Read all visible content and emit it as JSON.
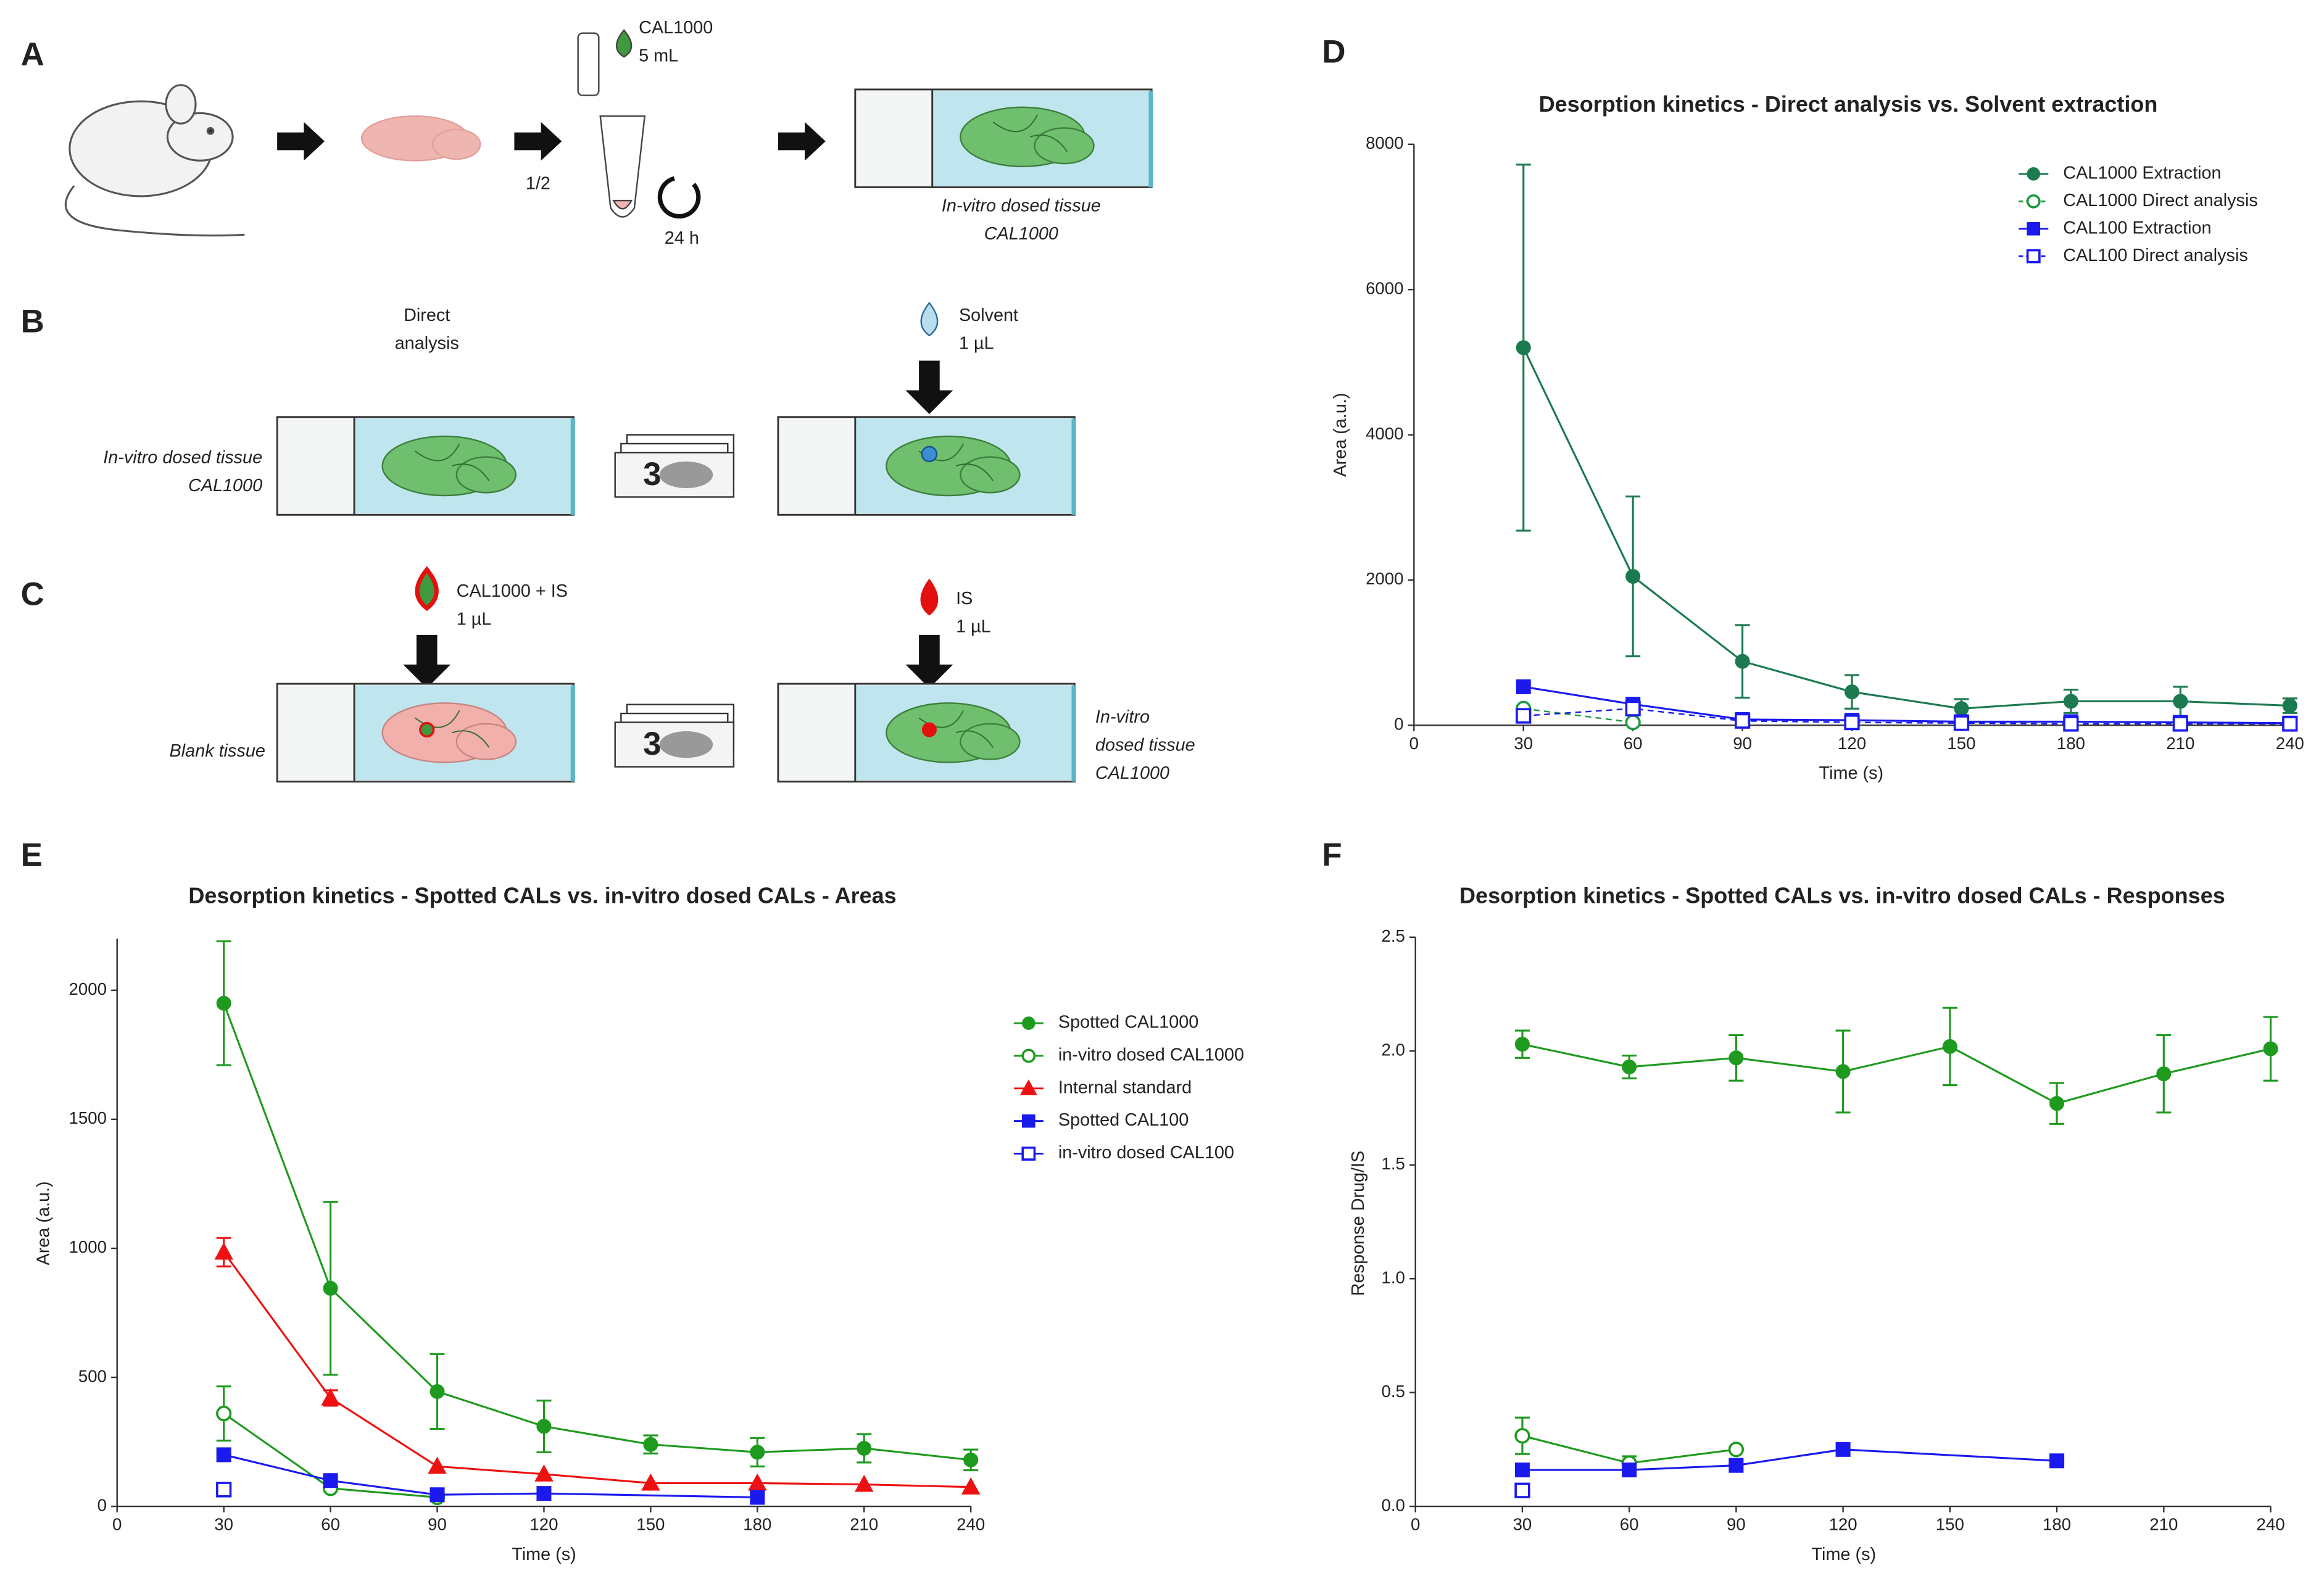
{
  "panel_labels": [
    "A",
    "B",
    "C",
    "D",
    "E",
    "F"
  ],
  "schematic": {
    "a": {
      "drug": "CAL1000",
      "volume": "5 mL",
      "fraction": "1/2",
      "time": "24 h",
      "slide_line1": "In-vitro dosed tissue",
      "slide_line2": "CAL1000"
    },
    "b": {
      "left_line1": "Direct",
      "left_line2": "analysis",
      "right_line1": "Solvent",
      "right_line2": "1 µL",
      "slide_line1": "In-vitro dosed tissue",
      "slide_line2": "CAL1000",
      "replicates": "3"
    },
    "c": {
      "left_line1": "CAL1000 + IS",
      "left_line2": "1 µL",
      "right_line1": "IS",
      "right_line2": "1 µL",
      "slide_left": "Blank tissue",
      "replicates": "3",
      "slide_right_line1": "In-vitro",
      "slide_right_line2": "dosed tissue",
      "slide_right_line3": "CAL1000"
    }
  },
  "chart_data": [
    {
      "type": "line",
      "title": "Desorption kinetics - Direct analysis vs. Solvent extraction",
      "x_label": "Time (s)",
      "y_label": "Area (a.u.)",
      "xlim": [
        0,
        240
      ],
      "xticks": [
        0,
        30,
        60,
        90,
        120,
        150,
        180,
        210,
        240
      ],
      "ylim": [
        0,
        8000
      ],
      "yticks": [
        0,
        2000,
        4000,
        6000,
        8000
      ],
      "legend": "upper right",
      "series": [
        {
          "name": "CAL1000 Extraction",
          "color": "#1b7a4f",
          "marker": "circle",
          "x": [
            30,
            60,
            90,
            120,
            150,
            180,
            210,
            240
          ],
          "values": [
            5200,
            2050,
            880,
            460,
            230,
            330,
            330,
            270
          ],
          "errors": [
            2520,
            1100,
            500,
            230,
            130,
            160,
            200,
            100
          ]
        },
        {
          "name": "CAL1000 Direct analysis",
          "color": "#1b9a3f",
          "marker": "circle-open",
          "line_style": "dashed",
          "x": [
            30,
            60
          ],
          "values": [
            230,
            40
          ]
        },
        {
          "name": "CAL100 Extraction",
          "color": "#1a1aee",
          "marker": "square",
          "x": [
            30,
            60,
            90,
            120,
            150,
            180,
            210,
            240
          ],
          "values": [
            530,
            290,
            80,
            70,
            50,
            50,
            40,
            30
          ]
        },
        {
          "name": "CAL100 Direct analysis",
          "color": "#1a1aee",
          "marker": "square-open",
          "line_style": "dashed",
          "x": [
            30,
            60,
            90,
            120,
            150,
            180,
            210,
            240
          ],
          "values": [
            130,
            230,
            60,
            40,
            30,
            20,
            20,
            20
          ]
        }
      ]
    },
    {
      "type": "line",
      "title": "Desorption kinetics - Spotted CALs vs. in-vitro dosed CALs - Areas",
      "x_label": "Time (s)",
      "y_label": "Area (a.u.)",
      "xlim": [
        0,
        240
      ],
      "xticks": [
        0,
        30,
        60,
        90,
        120,
        150,
        180,
        210,
        240
      ],
      "ylim": [
        0,
        2200
      ],
      "yticks": [
        0,
        500,
        1000,
        1500,
        2000
      ],
      "legend": "upper right",
      "series": [
        {
          "name": "Spotted CAL1000",
          "color": "#1e9a1e",
          "marker": "circle",
          "x": [
            30,
            60,
            90,
            120,
            150,
            180,
            210,
            240
          ],
          "values": [
            1950,
            845,
            445,
            310,
            240,
            210,
            225,
            180
          ],
          "errors": [
            240,
            335,
            145,
            100,
            35,
            55,
            55,
            40
          ]
        },
        {
          "name": "in-vitro dosed CAL1000",
          "color": "#1e9a1e",
          "marker": "circle-open",
          "x": [
            30,
            60,
            90
          ],
          "values": [
            360,
            70,
            35
          ],
          "errors": [
            105,
            null,
            null
          ]
        },
        {
          "name": "Internal standard",
          "color": "#ee1111",
          "marker": "triangle",
          "x": [
            30,
            60,
            90,
            120,
            150,
            180,
            210,
            240
          ],
          "values": [
            985,
            420,
            155,
            125,
            90,
            90,
            85,
            75
          ],
          "errors": [
            55,
            30,
            null,
            null,
            null,
            null,
            null,
            null
          ]
        },
        {
          "name": "Spotted CAL100",
          "color": "#1a1aee",
          "marker": "square",
          "x": [
            30,
            60,
            90,
            120,
            180
          ],
          "values": [
            200,
            100,
            45,
            50,
            35
          ]
        },
        {
          "name": "in-vitro dosed CAL100",
          "color": "#1a1aee",
          "marker": "square-open",
          "x": [
            30
          ],
          "values": [
            65
          ]
        }
      ]
    },
    {
      "type": "line",
      "title": "Desorption kinetics - Spotted CALs vs. in-vitro dosed CALs - Responses",
      "x_label": "Time (s)",
      "y_label": "Response Drug/IS",
      "xlim": [
        0,
        240
      ],
      "xticks": [
        0,
        30,
        60,
        90,
        120,
        150,
        180,
        210,
        240
      ],
      "ylim": [
        0,
        2.5
      ],
      "yticks": [
        {
          "value": 0,
          "label": "0.0"
        },
        0.5,
        {
          "value": 1,
          "label": "1.0"
        },
        1.5,
        {
          "value": 2,
          "label": "2.0"
        },
        2.5
      ],
      "series": [
        {
          "color": "#1e9a1e",
          "marker": "circle",
          "x": [
            30,
            60,
            90,
            120,
            150,
            180,
            210,
            240
          ],
          "values": [
            2.03,
            1.93,
            1.97,
            1.91,
            2.02,
            1.77,
            1.9,
            2.01
          ],
          "errors": [
            0.06,
            0.05,
            0.1,
            0.18,
            0.17,
            0.09,
            0.17,
            0.14
          ]
        },
        {
          "color": "#1e9a1e",
          "marker": "circle-open",
          "x": [
            30,
            60,
            90
          ],
          "values": [
            0.31,
            0.19,
            0.25
          ],
          "errors": [
            0.08,
            0.03,
            null
          ]
        },
        {
          "color": "#1a1aee",
          "marker": "square",
          "x": [
            30,
            60,
            90,
            120,
            180
          ],
          "values": [
            0.16,
            0.16,
            0.18,
            0.25,
            0.2
          ]
        },
        {
          "color": "#1a1aee",
          "marker": "square-open",
          "x": [
            30
          ],
          "values": [
            0.07
          ]
        }
      ]
    }
  ]
}
